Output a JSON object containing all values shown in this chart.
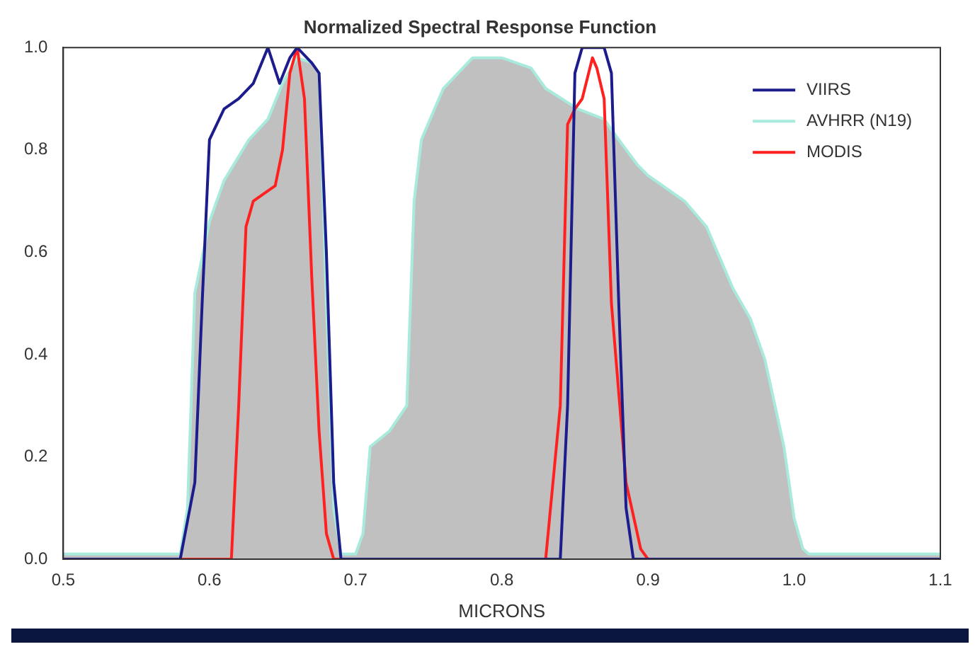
{
  "chart_data": {
    "type": "line",
    "title": "Normalized Spectral Response Function",
    "xlabel": "MICRONS",
    "xlim": [
      0.5,
      1.1
    ],
    "ylim": [
      0,
      1.0
    ],
    "xticks": [
      0.5,
      0.6,
      0.7,
      0.8,
      0.9,
      {
        "value": 1.0,
        "label": "1.0"
      },
      1.1
    ],
    "yticks": [
      {
        "value": 0,
        "label": "0.0"
      },
      0.2,
      0.4,
      0.6,
      0.8,
      {
        "value": 1.0,
        "label": "1.0"
      }
    ],
    "grid": false,
    "legend": "top right",
    "marker": "none",
    "line_style": "solid",
    "series": [
      {
        "name": "VIIRS",
        "color": "#1c1c8c",
        "x": [
          0.5,
          0.58,
          0.59,
          0.595,
          0.6,
          0.605,
          0.61,
          0.62,
          0.63,
          0.64,
          0.648,
          0.655,
          0.66,
          0.67,
          0.675,
          0.68,
          0.685,
          0.69,
          0.84,
          0.845,
          0.85,
          0.855,
          0.87,
          0.875,
          0.88,
          0.885,
          0.89,
          1.1
        ],
        "values": [
          0,
          0,
          0.15,
          0.5,
          0.82,
          0.85,
          0.88,
          0.9,
          0.93,
          1.0,
          0.93,
          0.98,
          1.0,
          0.97,
          0.95,
          0.6,
          0.15,
          0,
          0,
          0.3,
          0.95,
          1.0,
          1.0,
          0.95,
          0.5,
          0.1,
          0,
          0
        ]
      },
      {
        "name": "AVHRR (N19)",
        "type": "area",
        "color": "#a8eadc",
        "x": [
          0.5,
          0.58,
          0.585,
          0.59,
          0.6,
          0.61,
          0.627,
          0.64,
          0.65,
          0.66,
          0.67,
          0.675,
          0.68,
          0.685,
          0.69,
          0.7,
          0.705,
          0.71,
          0.723,
          0.735,
          0.74,
          0.745,
          0.76,
          0.78,
          0.8,
          0.82,
          0.83,
          0.852,
          0.87,
          0.88,
          0.893,
          0.9,
          0.925,
          0.94,
          0.958,
          0.97,
          0.98,
          0.993,
          1.0,
          1.006,
          1.01,
          1.1
        ],
        "values": [
          0.01,
          0.01,
          0.1,
          0.52,
          0.66,
          0.74,
          0.82,
          0.86,
          0.93,
          0.98,
          0.97,
          0.95,
          0.5,
          0.1,
          0.01,
          0.01,
          0.05,
          0.22,
          0.25,
          0.3,
          0.7,
          0.82,
          0.92,
          0.98,
          0.98,
          0.96,
          0.92,
          0.88,
          0.86,
          0.82,
          0.77,
          0.75,
          0.7,
          0.65,
          0.53,
          0.47,
          0.39,
          0.22,
          0.08,
          0.02,
          0.01,
          0.01
        ]
      },
      {
        "name": "MODIS",
        "color": "#ff2020",
        "x": [
          0.5,
          0.615,
          0.62,
          0.625,
          0.63,
          0.645,
          0.65,
          0.655,
          0.66,
          0.665,
          0.67,
          0.675,
          0.68,
          0.685,
          0.83,
          0.84,
          0.845,
          0.85,
          0.855,
          0.862,
          0.865,
          0.87,
          0.875,
          0.885,
          0.895,
          0.9,
          1.1
        ],
        "values": [
          0,
          0,
          0.3,
          0.65,
          0.7,
          0.73,
          0.8,
          0.95,
          1.0,
          0.9,
          0.55,
          0.25,
          0.05,
          0,
          0,
          0.3,
          0.85,
          0.88,
          0.9,
          0.98,
          0.96,
          0.9,
          0.5,
          0.15,
          0.02,
          0,
          0
        ]
      }
    ]
  }
}
